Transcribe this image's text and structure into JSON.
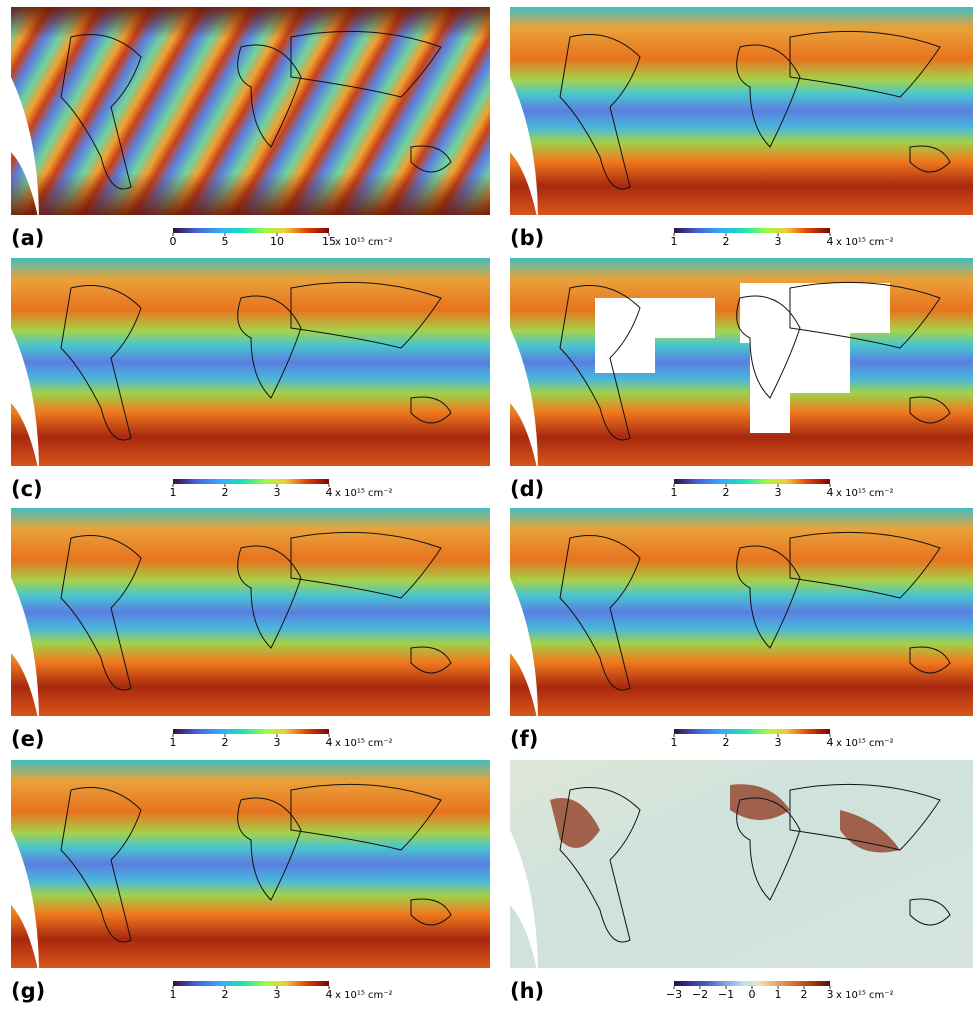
{
  "panels": [
    {
      "label": "(a)",
      "colormap": "rainbow",
      "range": [
        0,
        15
      ],
      "ticks": [
        0,
        5,
        10,
        15
      ],
      "unit": "x 10¹⁵ cm⁻²"
    },
    {
      "label": "(b)",
      "colormap": "rainbow",
      "range": [
        1,
        4
      ],
      "ticks": [
        1,
        2,
        3,
        4
      ],
      "unit": "x 10¹⁵ cm⁻²"
    },
    {
      "label": "(c)",
      "colormap": "rainbow",
      "range": [
        1,
        4
      ],
      "ticks": [
        1,
        2,
        3,
        4
      ],
      "unit": "x 10¹⁵ cm⁻²"
    },
    {
      "label": "(d)",
      "colormap": "rainbow",
      "range": [
        1,
        4
      ],
      "ticks": [
        1,
        2,
        3,
        4
      ],
      "unit": "x 10¹⁵ cm⁻²"
    },
    {
      "label": "(e)",
      "colormap": "rainbow",
      "range": [
        1,
        4
      ],
      "ticks": [
        1,
        2,
        3,
        4
      ],
      "unit": "x 10¹⁵ cm⁻²"
    },
    {
      "label": "(f)",
      "colormap": "rainbow",
      "range": [
        1,
        4
      ],
      "ticks": [
        1,
        2,
        3,
        4
      ],
      "unit": "x 10¹⁵ cm⁻²"
    },
    {
      "label": "(g)",
      "colormap": "rainbow",
      "range": [
        1,
        4
      ],
      "ticks": [
        1,
        2,
        3,
        4
      ],
      "unit": "x 10¹⁵ cm⁻²"
    },
    {
      "label": "(h)",
      "colormap": "diverging",
      "range": [
        -3,
        3
      ],
      "ticks": [
        {
          "value": -3,
          "label": "−3"
        },
        {
          "value": -2,
          "label": "−2"
        },
        {
          "value": -1,
          "label": "−1"
        },
        0,
        1,
        2,
        3
      ],
      "unit": "x 10¹⁵ cm⁻²"
    }
  ]
}
